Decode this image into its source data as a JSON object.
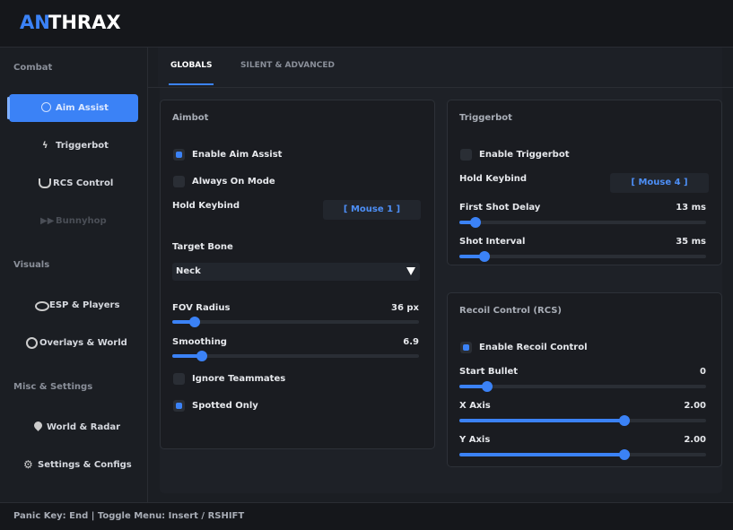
{
  "header": {
    "logo_accent": "AN",
    "logo_rest": "THRAX"
  },
  "sidebar": {
    "sections": [
      {
        "title": "Combat",
        "items": [
          "Aim Assist",
          "Triggerbot",
          "RCS Control",
          "Bunnyhop"
        ]
      },
      {
        "title": "Visuals",
        "items": [
          "ESP & Players",
          "Overlays & World"
        ]
      },
      {
        "title": "Misc & Settings",
        "items": [
          "World & Radar",
          "Settings & Configs"
        ]
      }
    ]
  },
  "tabs": [
    "GLOBALS",
    "SILENT & ADVANCED"
  ],
  "aimbot": {
    "title": "Aimbot",
    "enable": "Enable Aim Assist",
    "always_on": "Always On Mode",
    "keybind_label": "Hold Keybind",
    "keybind": "[ Mouse 1 ]",
    "bone_label": "Target Bone",
    "bone": "Neck",
    "fov_label": "FOV Radius",
    "fov": "36 px",
    "smoothing_label": "Smoothing",
    "smoothing": "6.9",
    "ignore_team": "Ignore Teammates",
    "spotted": "Spotted Only"
  },
  "triggerbot": {
    "title": "Triggerbot",
    "enable": "Enable Triggerbot",
    "keybind_label": "Hold Keybind",
    "keybind": "[ Mouse 4 ]",
    "delay_label": "First Shot Delay",
    "delay": "13 ms",
    "interval_label": "Shot Interval",
    "interval": "35 ms"
  },
  "recoil": {
    "title": "Recoil Control (RCS)",
    "enable": "Enable Recoil Control",
    "start_label": "Start Bullet",
    "start": "0",
    "x_label": "X Axis",
    "x": "2.00",
    "y_label": "Y Axis",
    "y": "2.00"
  },
  "footer": "Panic Key: End | Toggle Menu: Insert / RSHIFT"
}
